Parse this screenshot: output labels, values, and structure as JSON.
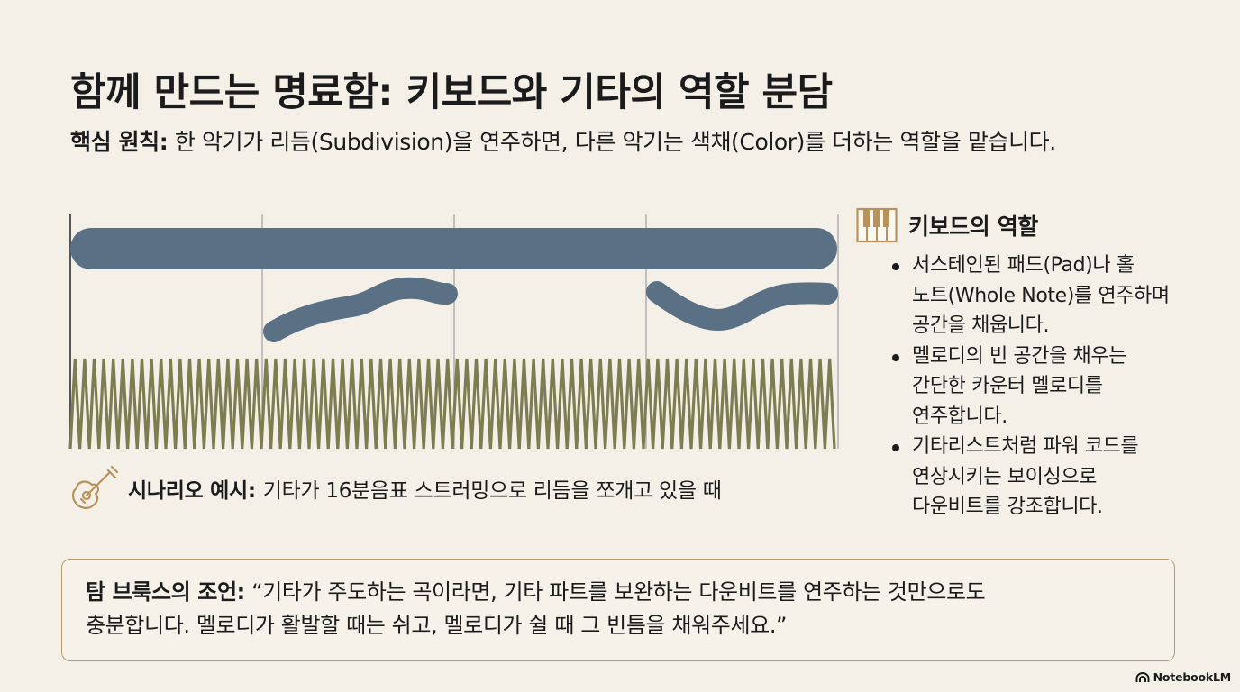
{
  "title": "함께 만드는 명료함: 키보드와 기타의 역할 분담",
  "principle": {
    "label": "핵심 원칙:",
    "text": "한 악기가 리듬(Subdivision)을 연주하면, 다른 악기는 색채(Color)를 더하는 역할을 맡습니다."
  },
  "diagram": {
    "colors": {
      "pad": "#5a7185",
      "guitar": "#7d7d52",
      "gridline": "#9a9a9a"
    },
    "measures": 4,
    "layers": [
      "keyboard-pad",
      "keyboard-counter-melody",
      "guitar-16th-strumming"
    ]
  },
  "scenario": {
    "icon": "acoustic-guitar-icon",
    "label": "시나리오 예시:",
    "text": "기타가 16분음표 스트러밍으로 리듬을 쪼개고 있을 때"
  },
  "keyboard_role": {
    "icon": "piano-keys-icon",
    "title": "키보드의 역할",
    "bullets": [
      [
        "서스테인된 패드(Pad)나 홀",
        "노트(Whole Note)를 연주하며",
        "공간을 채웁니다."
      ],
      [
        "멜로디의 빈 공간을 채우는",
        "간단한 카운터 멜로디를",
        "연주합니다."
      ],
      [
        "기타리스트처럼 파워 코드를",
        "연상시키는 보이싱으로",
        "다운비트를 강조합니다."
      ]
    ]
  },
  "quote": {
    "label": "탐 브룩스의 조언:",
    "line1": "“기타가 주도하는 곡이라면, 기타 파트를 보완하는 다운비트를 연주하는 것만으로도",
    "line2": "충분합니다. 멜로디가 활발할 때는 쉬고, 멜로디가 쉴 때 그 빈틈을 채워주세요.”"
  },
  "brand": "NotebookLM"
}
